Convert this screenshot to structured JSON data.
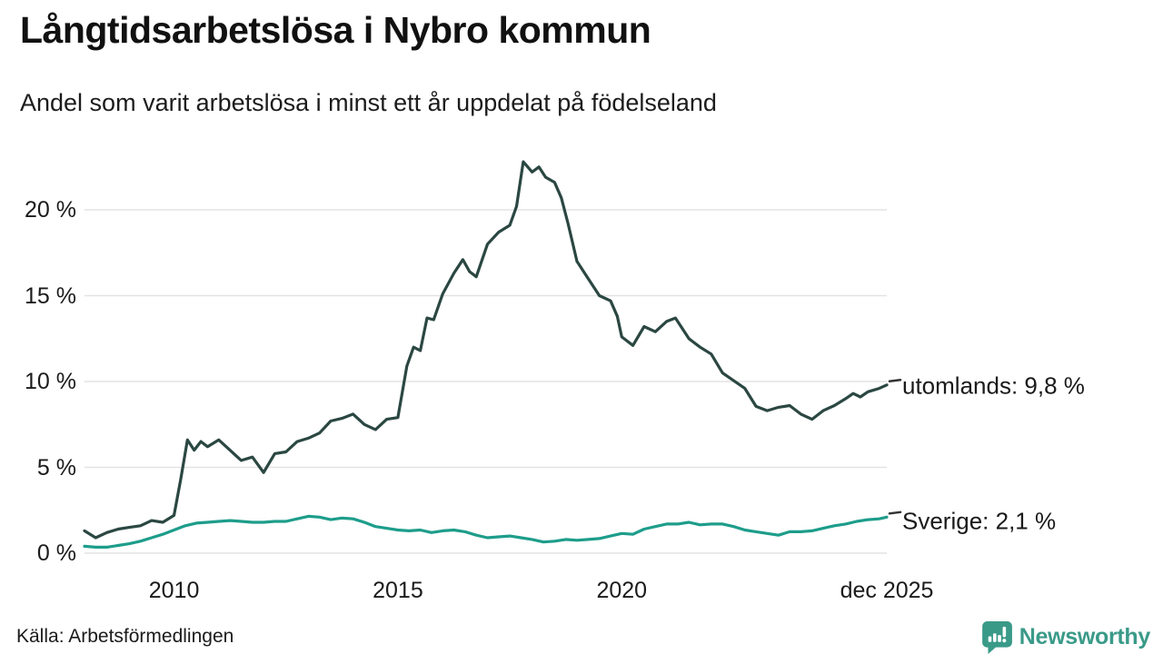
{
  "header": {
    "title": "Långtidsarbetslösa i Nybro kommun",
    "subtitle": "Andel som varit arbetslösa i minst ett år uppdelat på födelseland"
  },
  "footer": {
    "source": "Källa: Arbetsförmedlingen",
    "brand": "Newsworthy"
  },
  "colors": {
    "utomlands_line": "#2b4742",
    "sverige_line": "#1d9d8b",
    "grid": "#e3e3e3",
    "brand": "#3a9a88",
    "text": "#1a1a1a",
    "connector": "#333333"
  },
  "chart_data": {
    "type": "line",
    "title": "Långtidsarbetslösa i Nybro kommun",
    "subtitle": "Andel som varit arbetslösa i minst ett år uppdelat på födelseland",
    "xlabel": "",
    "ylabel": "",
    "x_unit": "decimal year",
    "x_range": [
      2008.0,
      2025.92
    ],
    "ylim": [
      0,
      23.5
    ],
    "grid": "horizontal",
    "legend_position": "end-of-line labels, right side",
    "y_axis": {
      "ticks": [
        {
          "value": 0,
          "label": "0 %"
        },
        {
          "value": 5,
          "label": "5 %"
        },
        {
          "value": 10,
          "label": "10 %"
        },
        {
          "value": 15,
          "label": "15 %"
        },
        {
          "value": 20,
          "label": "20 %"
        }
      ]
    },
    "x_axis": {
      "ticks": [
        {
          "value": 2010,
          "label": "2010"
        },
        {
          "value": 2015,
          "label": "2015"
        },
        {
          "value": 2020,
          "label": "2020"
        },
        {
          "value": 2025.92,
          "label": "dec 2025"
        }
      ]
    },
    "series": [
      {
        "name": "utomlands",
        "end_label": "utomlands: 9,8 %",
        "last_value": 9.8,
        "color": "#2b4742",
        "label_dy": 1,
        "points": [
          [
            2008.0,
            1.3
          ],
          [
            2008.25,
            0.9
          ],
          [
            2008.5,
            1.2
          ],
          [
            2008.75,
            1.4
          ],
          [
            2009.0,
            1.5
          ],
          [
            2009.25,
            1.6
          ],
          [
            2009.5,
            1.9
          ],
          [
            2009.75,
            1.8
          ],
          [
            2010.0,
            2.2
          ],
          [
            2010.15,
            4.3
          ],
          [
            2010.3,
            6.6
          ],
          [
            2010.45,
            6.0
          ],
          [
            2010.6,
            6.5
          ],
          [
            2010.75,
            6.2
          ],
          [
            2011.0,
            6.6
          ],
          [
            2011.25,
            6.0
          ],
          [
            2011.5,
            5.4
          ],
          [
            2011.75,
            5.6
          ],
          [
            2012.0,
            4.7
          ],
          [
            2012.25,
            5.8
          ],
          [
            2012.5,
            5.9
          ],
          [
            2012.75,
            6.5
          ],
          [
            2013.0,
            6.7
          ],
          [
            2013.25,
            7.0
          ],
          [
            2013.5,
            7.7
          ],
          [
            2013.75,
            7.85
          ],
          [
            2014.0,
            8.1
          ],
          [
            2014.25,
            7.5
          ],
          [
            2014.5,
            7.2
          ],
          [
            2014.75,
            7.8
          ],
          [
            2015.0,
            7.9
          ],
          [
            2015.2,
            10.9
          ],
          [
            2015.35,
            12.0
          ],
          [
            2015.5,
            11.8
          ],
          [
            2015.65,
            13.7
          ],
          [
            2015.8,
            13.6
          ],
          [
            2016.0,
            15.1
          ],
          [
            2016.25,
            16.3
          ],
          [
            2016.45,
            17.1
          ],
          [
            2016.6,
            16.4
          ],
          [
            2016.75,
            16.1
          ],
          [
            2017.0,
            18.0
          ],
          [
            2017.25,
            18.7
          ],
          [
            2017.5,
            19.1
          ],
          [
            2017.65,
            20.2
          ],
          [
            2017.8,
            22.8
          ],
          [
            2018.0,
            22.2
          ],
          [
            2018.15,
            22.5
          ],
          [
            2018.3,
            21.9
          ],
          [
            2018.5,
            21.6
          ],
          [
            2018.65,
            20.7
          ],
          [
            2018.8,
            19.2
          ],
          [
            2019.0,
            17.0
          ],
          [
            2019.25,
            16.0
          ],
          [
            2019.5,
            15.0
          ],
          [
            2019.75,
            14.7
          ],
          [
            2019.9,
            13.8
          ],
          [
            2020.0,
            12.6
          ],
          [
            2020.25,
            12.1
          ],
          [
            2020.5,
            13.2
          ],
          [
            2020.75,
            12.9
          ],
          [
            2021.0,
            13.5
          ],
          [
            2021.2,
            13.7
          ],
          [
            2021.5,
            12.5
          ],
          [
            2021.75,
            12.0
          ],
          [
            2022.0,
            11.6
          ],
          [
            2022.25,
            10.5
          ],
          [
            2022.5,
            10.05
          ],
          [
            2022.75,
            9.6
          ],
          [
            2023.0,
            8.55
          ],
          [
            2023.25,
            8.3
          ],
          [
            2023.5,
            8.5
          ],
          [
            2023.75,
            8.6
          ],
          [
            2024.0,
            8.1
          ],
          [
            2024.25,
            7.8
          ],
          [
            2024.5,
            8.3
          ],
          [
            2024.75,
            8.6
          ],
          [
            2025.0,
            9.0
          ],
          [
            2025.17,
            9.3
          ],
          [
            2025.33,
            9.1
          ],
          [
            2025.5,
            9.4
          ],
          [
            2025.75,
            9.6
          ],
          [
            2025.92,
            9.8
          ]
        ]
      },
      {
        "name": "Sverige",
        "end_label": "Sverige: 2,1 %",
        "last_value": 2.1,
        "color": "#1d9d8b",
        "label_dy": 5,
        "points": [
          [
            2008.0,
            0.4
          ],
          [
            2008.25,
            0.35
          ],
          [
            2008.5,
            0.35
          ],
          [
            2008.75,
            0.45
          ],
          [
            2009.0,
            0.55
          ],
          [
            2009.25,
            0.7
          ],
          [
            2009.5,
            0.9
          ],
          [
            2009.75,
            1.1
          ],
          [
            2010.0,
            1.35
          ],
          [
            2010.25,
            1.6
          ],
          [
            2010.5,
            1.75
          ],
          [
            2010.75,
            1.8
          ],
          [
            2011.0,
            1.85
          ],
          [
            2011.25,
            1.9
          ],
          [
            2011.5,
            1.85
          ],
          [
            2011.75,
            1.8
          ],
          [
            2012.0,
            1.8
          ],
          [
            2012.25,
            1.85
          ],
          [
            2012.5,
            1.85
          ],
          [
            2012.75,
            2.0
          ],
          [
            2013.0,
            2.15
          ],
          [
            2013.25,
            2.1
          ],
          [
            2013.5,
            1.95
          ],
          [
            2013.75,
            2.05
          ],
          [
            2014.0,
            2.0
          ],
          [
            2014.25,
            1.8
          ],
          [
            2014.5,
            1.55
          ],
          [
            2014.75,
            1.45
          ],
          [
            2015.0,
            1.35
          ],
          [
            2015.25,
            1.3
          ],
          [
            2015.5,
            1.35
          ],
          [
            2015.75,
            1.2
          ],
          [
            2016.0,
            1.3
          ],
          [
            2016.25,
            1.35
          ],
          [
            2016.5,
            1.25
          ],
          [
            2016.75,
            1.05
          ],
          [
            2017.0,
            0.9
          ],
          [
            2017.25,
            0.95
          ],
          [
            2017.5,
            1.0
          ],
          [
            2017.75,
            0.9
          ],
          [
            2018.0,
            0.8
          ],
          [
            2018.25,
            0.65
          ],
          [
            2018.5,
            0.7
          ],
          [
            2018.75,
            0.8
          ],
          [
            2019.0,
            0.75
          ],
          [
            2019.25,
            0.8
          ],
          [
            2019.5,
            0.85
          ],
          [
            2019.75,
            1.0
          ],
          [
            2020.0,
            1.15
          ],
          [
            2020.25,
            1.1
          ],
          [
            2020.5,
            1.4
          ],
          [
            2020.75,
            1.55
          ],
          [
            2021.0,
            1.7
          ],
          [
            2021.25,
            1.7
          ],
          [
            2021.5,
            1.8
          ],
          [
            2021.75,
            1.65
          ],
          [
            2022.0,
            1.7
          ],
          [
            2022.25,
            1.7
          ],
          [
            2022.5,
            1.55
          ],
          [
            2022.75,
            1.35
          ],
          [
            2023.0,
            1.25
          ],
          [
            2023.25,
            1.15
          ],
          [
            2023.5,
            1.05
          ],
          [
            2023.75,
            1.25
          ],
          [
            2024.0,
            1.25
          ],
          [
            2024.25,
            1.3
          ],
          [
            2024.5,
            1.45
          ],
          [
            2024.75,
            1.6
          ],
          [
            2025.0,
            1.7
          ],
          [
            2025.25,
            1.85
          ],
          [
            2025.5,
            1.95
          ],
          [
            2025.75,
            2.0
          ],
          [
            2025.92,
            2.1
          ]
        ]
      }
    ]
  }
}
